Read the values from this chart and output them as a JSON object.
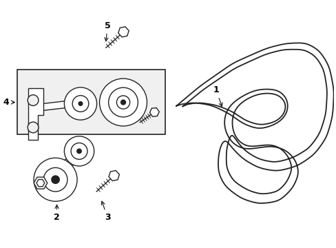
{
  "background_color": "#ffffff",
  "line_color": "#222222",
  "label_color": "#000000",
  "fig_width": 4.89,
  "fig_height": 3.6,
  "dpi": 100,
  "belt_lw": 1.3,
  "component_lw": 1.0,
  "label_fontsize": 9
}
